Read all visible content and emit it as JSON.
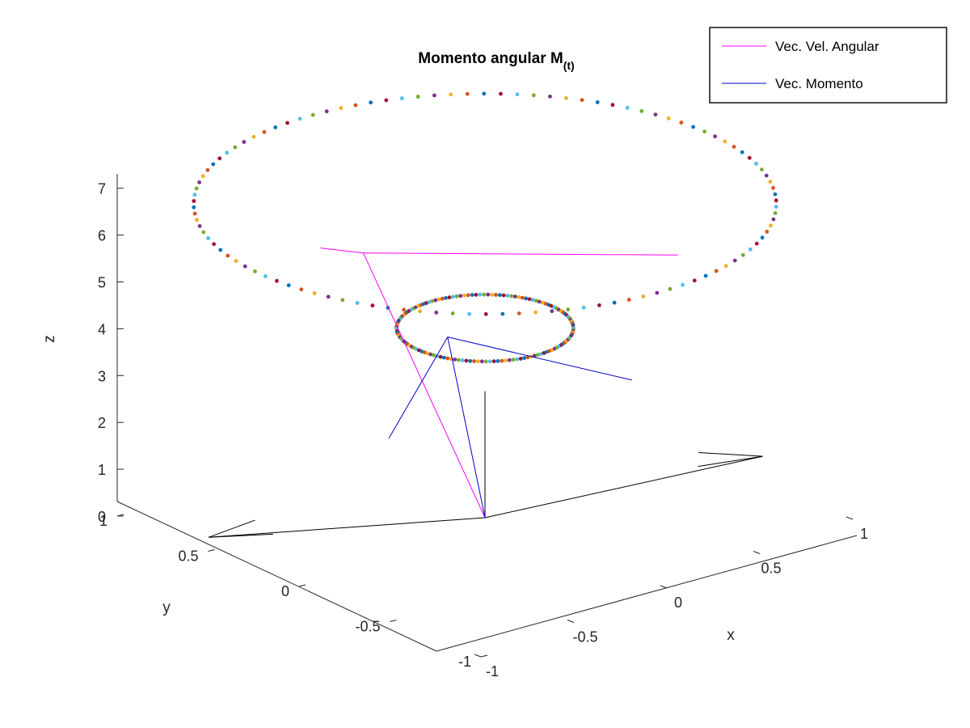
{
  "chart_data": {
    "type": "scatter",
    "projection": "3d",
    "title_main": "Momento angular M",
    "title_sub": "(t)",
    "xlabel": "x",
    "ylabel": "y",
    "zlabel": "z",
    "xlim": [
      -1,
      1
    ],
    "ylim": [
      -1,
      1
    ],
    "zlim": [
      0,
      7
    ],
    "grid": false,
    "legend_position": "top-right",
    "x_ticks": [
      {
        "value": -1,
        "label": "-1"
      },
      {
        "value": -0.5,
        "label": "-0.5"
      },
      {
        "value": 0,
        "label": "0"
      },
      {
        "value": 0.5,
        "label": "0.5"
      },
      {
        "value": 1,
        "label": "1"
      }
    ],
    "y_ticks": [
      {
        "value": -1,
        "label": "-1"
      },
      {
        "value": -0.5,
        "label": "-0.5"
      },
      {
        "value": 0,
        "label": "0"
      },
      {
        "value": 0.5,
        "label": "0.5"
      },
      {
        "value": 1,
        "label": "1"
      }
    ],
    "z_ticks": [
      {
        "value": 0,
        "label": "0"
      },
      {
        "value": 1,
        "label": "1"
      },
      {
        "value": 2,
        "label": "2"
      },
      {
        "value": 3,
        "label": "3"
      },
      {
        "value": 4,
        "label": "4"
      },
      {
        "value": 5,
        "label": "5"
      },
      {
        "value": 6,
        "label": "6"
      },
      {
        "value": 7,
        "label": "7"
      }
    ],
    "series": [
      {
        "name": "Vec. Vel. Angular",
        "color": "#ff00ff"
      },
      {
        "name": "Vec. Momento",
        "color": "#0000cc"
      }
    ],
    "marker_colors": [
      "#0072bd",
      "#d95319",
      "#edb120",
      "#7e2f8e",
      "#77ac30",
      "#4dbeee",
      "#a2142f"
    ],
    "trajectories": [
      {
        "id": "angular-velocity-trace",
        "center": [
          0,
          0,
          6.7
        ],
        "radius": 1.12,
        "points": 110
      },
      {
        "id": "momentum-trace",
        "center": [
          0,
          0,
          4.05
        ],
        "radius": 0.34,
        "points": 140
      }
    ],
    "segments": [
      {
        "series": 0,
        "from": [
          0,
          0,
          0
        ],
        "to": [
          -0.85,
          -0.2,
          7.2
        ]
      },
      {
        "series": 0,
        "from": [
          -0.85,
          -0.2,
          7.2
        ],
        "to": [
          -0.2,
          0.7,
          5.0
        ]
      },
      {
        "series": 0,
        "from": [
          -0.85,
          -0.2,
          7.2
        ],
        "to": [
          0.5,
          -0.55,
          5.7
        ]
      },
      {
        "series": 1,
        "from": [
          0,
          0,
          0
        ],
        "to": [
          -0.25,
          -0.05,
          4.3
        ]
      },
      {
        "series": 1,
        "from": [
          -0.25,
          -0.05,
          4.3
        ],
        "to": [
          -0.4,
          0.12,
          2.1
        ]
      },
      {
        "series": 1,
        "from": [
          -0.25,
          -0.05,
          4.3
        ],
        "to": [
          0.35,
          -0.45,
          3.1
        ]
      }
    ],
    "frame_axes": [
      {
        "name": "body-axis-x",
        "to": [
          1.2,
          -0.3,
          0
        ],
        "head": [
          [
            1.05,
            -0.1,
            0
          ],
          [
            0.95,
            -0.2,
            0
          ]
        ]
      },
      {
        "name": "body-axis-y",
        "to": [
          -0.9,
          0.6,
          0
        ],
        "head": [
          [
            -0.65,
            0.6,
            0
          ],
          [
            -0.7,
            0.45,
            0
          ]
        ]
      },
      {
        "name": "body-axis-z",
        "to": [
          0,
          0,
          2.7
        ],
        "head": []
      }
    ]
  }
}
